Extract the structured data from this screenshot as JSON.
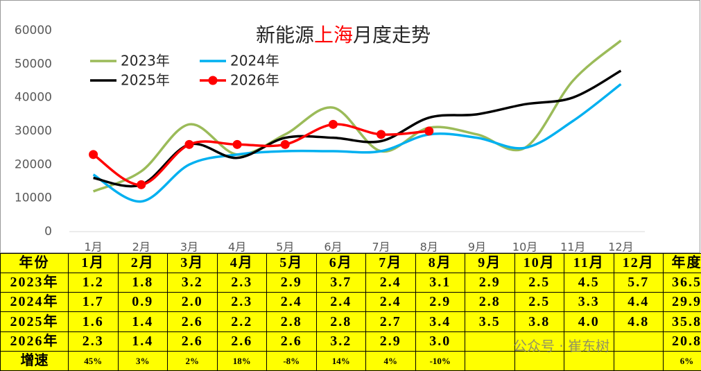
{
  "chart_data": {
    "type": "line",
    "title_segments": [
      {
        "text": "新能源",
        "color": "#262626"
      },
      {
        "text": "上海",
        "color": "#ff0000"
      },
      {
        "text": "月度走势",
        "color": "#262626"
      }
    ],
    "categories": [
      "1月",
      "2月",
      "3月",
      "4月",
      "5月",
      "6月",
      "7月",
      "8月",
      "9月",
      "10月",
      "11月",
      "12月"
    ],
    "series": [
      {
        "name": "2023年",
        "color": "#9bbb59",
        "values": [
          12000,
          18000,
          32000,
          23000,
          29000,
          37000,
          24000,
          31000,
          29000,
          25000,
          45000,
          57000
        ]
      },
      {
        "name": "2024年",
        "color": "#00b0f0",
        "values": [
          17000,
          9000,
          20000,
          23000,
          24000,
          24000,
          24000,
          29000,
          28000,
          25000,
          33000,
          44000
        ]
      },
      {
        "name": "2025年",
        "color": "#000000",
        "values": [
          16000,
          14000,
          26000,
          22000,
          28000,
          28000,
          27000,
          34000,
          35000,
          38000,
          40000,
          48000
        ]
      },
      {
        "name": "2026年",
        "color": "#ff0000",
        "markers": true,
        "values": [
          23000,
          14000,
          26000,
          26000,
          26000,
          32000,
          29000,
          30000,
          null,
          null,
          null,
          null
        ]
      }
    ],
    "smooth": true,
    "grid": false,
    "legend": "top-left",
    "ylim": [
      0,
      60000
    ],
    "yticks": [
      0,
      10000,
      20000,
      30000,
      40000,
      50000,
      60000
    ]
  },
  "table": {
    "header": [
      "年份",
      "1月",
      "2月",
      "3月",
      "4月",
      "5月",
      "6月",
      "7月",
      "8月",
      "9月",
      "10月",
      "11月",
      "12月",
      "年度"
    ],
    "rows": [
      [
        "2023年",
        "1.2",
        "1.8",
        "3.2",
        "2.3",
        "2.9",
        "3.7",
        "2.4",
        "3.1",
        "2.9",
        "2.5",
        "4.5",
        "5.7",
        "36.5"
      ],
      [
        "2024年",
        "1.7",
        "0.9",
        "2.0",
        "2.3",
        "2.4",
        "2.4",
        "2.4",
        "2.9",
        "2.8",
        "2.5",
        "3.3",
        "4.4",
        "29.9"
      ],
      [
        "2025年",
        "1.6",
        "1.4",
        "2.6",
        "2.2",
        "2.8",
        "2.8",
        "2.7",
        "3.4",
        "3.5",
        "3.8",
        "4.0",
        "4.8",
        "35.8"
      ],
      [
        "2026年",
        "2.3",
        "1.4",
        "2.6",
        "2.6",
        "2.6",
        "3.2",
        "2.9",
        "3.0",
        null,
        null,
        null,
        null,
        "20.8"
      ],
      [
        "增速",
        "45%",
        "3%",
        "2%",
        "18%",
        "-8%",
        "14%",
        "4%",
        "-10%",
        null,
        null,
        null,
        null,
        "6%"
      ]
    ],
    "watermark": "公众号 · 崔东树"
  }
}
